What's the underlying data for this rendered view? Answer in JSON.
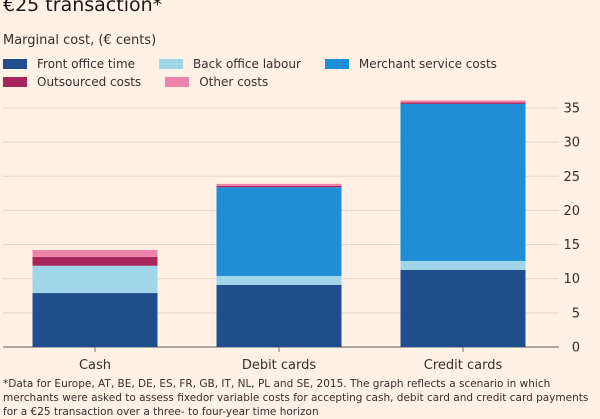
{
  "title": "€25 transaction*",
  "subtitle": "Marginal cost, (€ cents)",
  "footnote": "*Data for Europe, AT, BE, DE, ES, FR, GB, IT, NL, PL and SE, 2015. The graph reflects a scenario in which merchants were asked to assess fixedor variable costs for accepting cash, debit card and credit card payments for a €25 transaction over a three- to four-year time horizon",
  "chart_data": {
    "type": "bar",
    "stacked": true,
    "categories": [
      "Cash",
      "Debit cards",
      "Credit cards"
    ],
    "series": [
      {
        "name": "Front office time",
        "color": "#1f4e8c",
        "values": [
          7.9,
          9.1,
          11.3
        ]
      },
      {
        "name": "Back office labour",
        "color": "#9fd6ea",
        "values": [
          4.0,
          1.3,
          1.3
        ]
      },
      {
        "name": "Merchant service costs",
        "color": "#1e8fd6",
        "values": [
          0.0,
          13.0,
          23.0
        ]
      },
      {
        "name": "Outsourced costs",
        "color": "#a8255a",
        "values": [
          1.3,
          0.2,
          0.2
        ]
      },
      {
        "name": "Other costs",
        "color": "#ef82a8",
        "values": [
          1.0,
          0.3,
          0.3
        ]
      }
    ],
    "ylim": [
      0,
      35
    ],
    "yticks": [
      0,
      5,
      10,
      15,
      20,
      25,
      30,
      35
    ],
    "y_axis_position": "right",
    "legend_position": "top",
    "grid": true
  }
}
